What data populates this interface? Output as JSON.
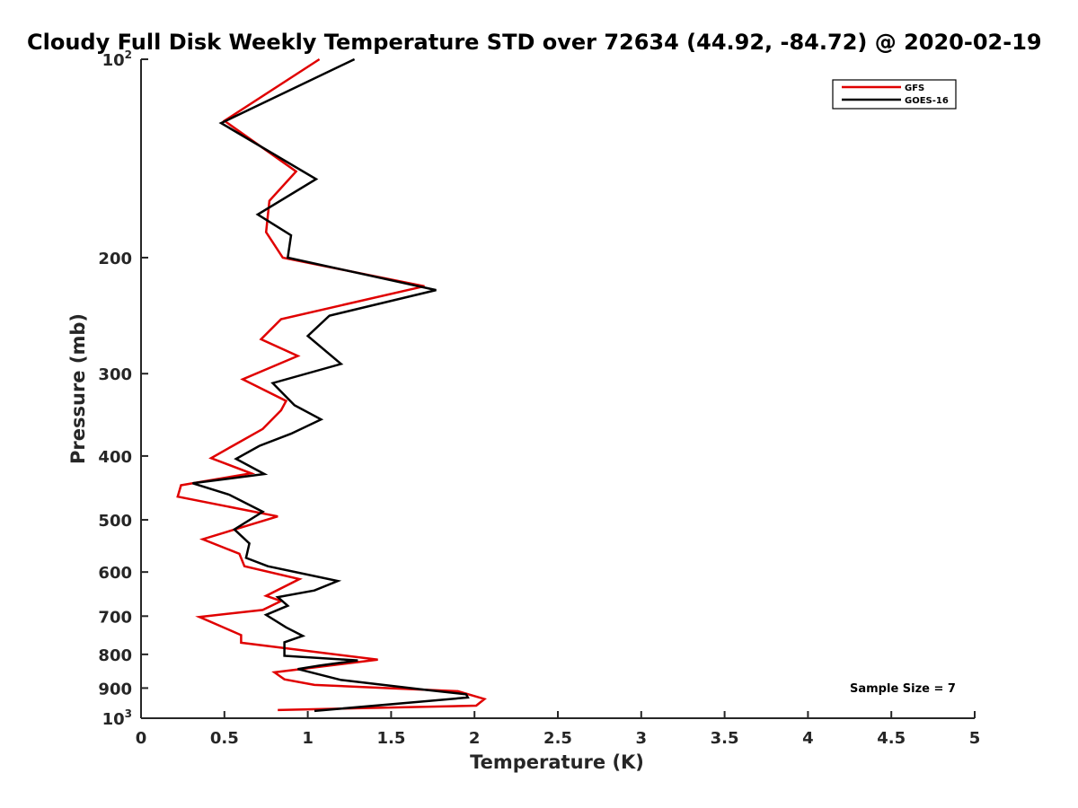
{
  "chart_data": {
    "type": "line",
    "title": "Cloudy Full Disk Weekly Temperature STD over 72634 (44.92, -84.72) @ 2020-02-19",
    "xlabel": "Temperature (K)",
    "ylabel": "Pressure (mb)",
    "xlim": [
      0,
      5
    ],
    "ylim": [
      100,
      1000
    ],
    "yscale": "log",
    "y_reversed": true,
    "grid": false,
    "legend_position": "top-right",
    "x_ticks": [
      0,
      0.5,
      1,
      1.5,
      2,
      2.5,
      3,
      3.5,
      4,
      4.5,
      5
    ],
    "x_tick_labels": [
      "0",
      "0.5",
      "1",
      "1.5",
      "2",
      "2.5",
      "3",
      "3.5",
      "4",
      "4.5",
      "5"
    ],
    "y_ticks": [
      {
        "value": 100,
        "base": "10",
        "exp": "2"
      },
      {
        "value": 200,
        "label": "200"
      },
      {
        "value": 300,
        "label": "300"
      },
      {
        "value": 400,
        "label": "400"
      },
      {
        "value": 500,
        "label": "500"
      },
      {
        "value": 600,
        "label": "600"
      },
      {
        "value": 700,
        "label": "700"
      },
      {
        "value": 800,
        "label": "800"
      },
      {
        "value": 900,
        "label": "900"
      },
      {
        "value": 1000,
        "base": "10",
        "exp": "3"
      }
    ],
    "annotation": "Sample Size = 7",
    "series": [
      {
        "name": "GFS",
        "color": "#e00000",
        "points": [
          [
            1.07,
            100
          ],
          [
            0.5,
            124
          ],
          [
            0.93,
            148
          ],
          [
            0.77,
            164
          ],
          [
            0.75,
            183
          ],
          [
            0.85,
            200
          ],
          [
            1.7,
            221
          ],
          [
            0.84,
            248
          ],
          [
            0.72,
            266
          ],
          [
            0.94,
            282
          ],
          [
            0.61,
            306
          ],
          [
            0.87,
            330
          ],
          [
            0.84,
            341
          ],
          [
            0.73,
            364
          ],
          [
            0.55,
            386
          ],
          [
            0.42,
            403
          ],
          [
            0.66,
            425
          ],
          [
            0.24,
            443
          ],
          [
            0.22,
            461
          ],
          [
            0.82,
            494
          ],
          [
            0.37,
            535
          ],
          [
            0.59,
            563
          ],
          [
            0.62,
            588
          ],
          [
            0.95,
            615
          ],
          [
            0.75,
            652
          ],
          [
            0.84,
            664
          ],
          [
            0.73,
            685
          ],
          [
            0.35,
            702
          ],
          [
            0.6,
            748
          ],
          [
            0.6,
            768
          ],
          [
            1.42,
            815
          ],
          [
            0.8,
            852
          ],
          [
            0.86,
            873
          ],
          [
            1.04,
            890
          ],
          [
            1.9,
            910
          ],
          [
            2.06,
            935
          ],
          [
            2.01,
            957
          ],
          [
            0.82,
            972
          ]
        ]
      },
      {
        "name": "GOES-16",
        "color": "#000000",
        "points": [
          [
            1.28,
            100
          ],
          [
            0.48,
            125
          ],
          [
            1.05,
            152
          ],
          [
            0.7,
            172
          ],
          [
            0.9,
            185
          ],
          [
            0.88,
            200
          ],
          [
            1.77,
            224
          ],
          [
            1.13,
            245
          ],
          [
            1.0,
            263
          ],
          [
            1.2,
            290
          ],
          [
            0.79,
            310
          ],
          [
            0.92,
            335
          ],
          [
            1.08,
            352
          ],
          [
            0.9,
            370
          ],
          [
            0.71,
            386
          ],
          [
            0.57,
            404
          ],
          [
            0.74,
            426
          ],
          [
            0.31,
            440
          ],
          [
            0.53,
            458
          ],
          [
            0.73,
            486
          ],
          [
            0.56,
            517
          ],
          [
            0.65,
            543
          ],
          [
            0.63,
            571
          ],
          [
            0.76,
            588
          ],
          [
            1.18,
            619
          ],
          [
            1.04,
            640
          ],
          [
            0.82,
            655
          ],
          [
            0.88,
            675
          ],
          [
            0.75,
            697
          ],
          [
            0.87,
            728
          ],
          [
            0.97,
            750
          ],
          [
            0.86,
            767
          ],
          [
            0.86,
            804
          ],
          [
            1.3,
            817
          ],
          [
            1.07,
            832
          ],
          [
            0.94,
            842
          ],
          [
            1.2,
            875
          ],
          [
            1.7,
            905
          ],
          [
            1.95,
            920
          ],
          [
            1.96,
            930
          ],
          [
            1.65,
            945
          ],
          [
            1.04,
            975
          ]
        ]
      }
    ]
  }
}
